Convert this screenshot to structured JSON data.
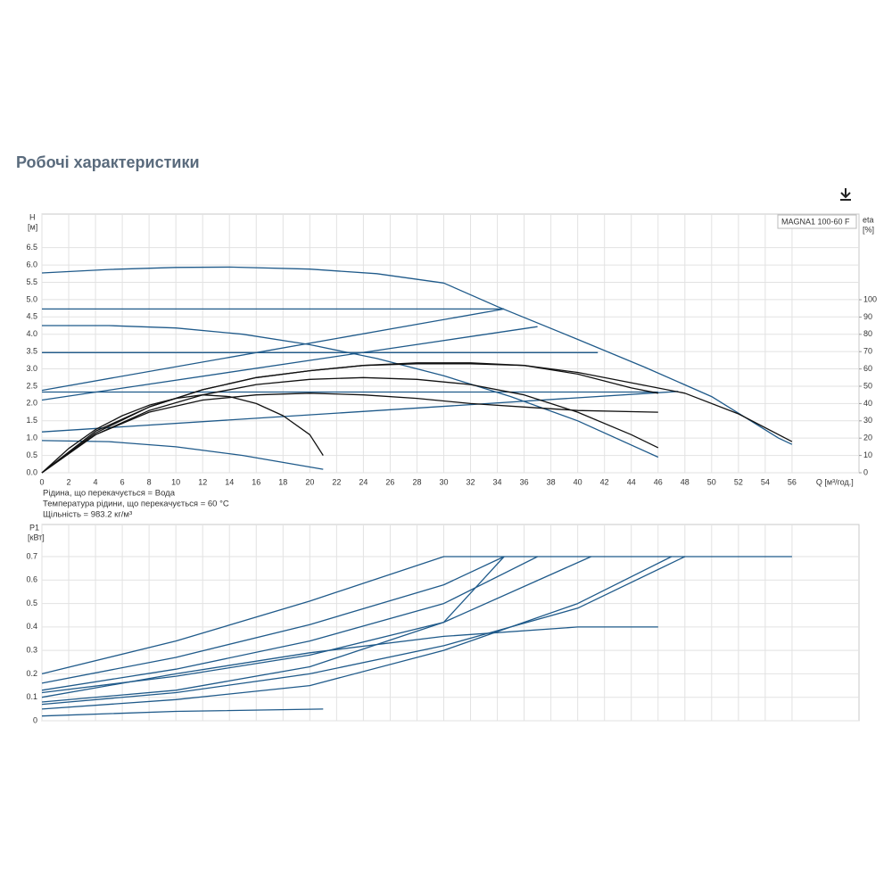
{
  "page_title": "Робочі характеристики",
  "notes": [
    "Рідина, що перекачується = Вода",
    "Температура рідини, що перекачується = 60 °C",
    "Щільність = 983.2 кг/м³"
  ],
  "chart_data": [
    {
      "type": "line",
      "legend_label": "MAGNA1 100-60 F",
      "ylabel": "H",
      "yunit": "[м]",
      "y2label": "eta",
      "y2unit": "[%]",
      "xlabel": "Q [м³/год.]",
      "xlim": [
        0,
        61
      ],
      "xticks": [
        0,
        2,
        4,
        6,
        8,
        10,
        12,
        14,
        16,
        18,
        20,
        22,
        24,
        26,
        28,
        30,
        32,
        34,
        36,
        38,
        40,
        42,
        44,
        46,
        48,
        50,
        52,
        54,
        56
      ],
      "xtick_labels": true,
      "grid": true,
      "ylim": [
        0,
        7.47
      ],
      "yticks": [
        {
          "value": 0,
          "label": "0.0"
        },
        0.5,
        {
          "value": 1,
          "label": "1.0"
        },
        1.5,
        {
          "value": 2,
          "label": "2.0"
        },
        2.5,
        {
          "value": 3,
          "label": "3.0"
        },
        3.5,
        {
          "value": 4,
          "label": "4.0"
        },
        4.5,
        {
          "value": 5,
          "label": "5.0"
        },
        5.5,
        {
          "value": 6,
          "label": "6.0"
        },
        6.5
      ],
      "y2lim": [
        0,
        149.5
      ],
      "y2ticks": [
        0,
        10,
        20,
        30,
        40,
        50,
        60,
        70,
        80,
        90,
        100
      ],
      "series": [
        {
          "color": "#1f5a8a",
          "x": [
            0,
            5,
            10,
            14,
            20,
            25,
            30,
            34,
            40,
            45,
            50,
            55,
            56
          ],
          "values": [
            5.77,
            5.87,
            5.93,
            5.94,
            5.88,
            5.75,
            5.48,
            4.8,
            3.85,
            3.05,
            2.2,
            1.0,
            0.82
          ]
        },
        {
          "color": "#1f5a8a",
          "x": [
            0,
            34.5
          ],
          "values": [
            4.73,
            4.73
          ]
        },
        {
          "color": "#1f5a8a",
          "x": [
            0,
            41.5
          ],
          "values": [
            3.47,
            3.47
          ]
        },
        {
          "color": "#1f5a8a",
          "x": [
            0,
            46
          ],
          "values": [
            2.33,
            2.33
          ]
        },
        {
          "color": "#1f5a8a",
          "x": [
            0,
            34.5
          ],
          "values": [
            2.38,
            4.73
          ]
        },
        {
          "color": "#1f5a8a",
          "x": [
            0,
            37
          ],
          "values": [
            2.1,
            4.22
          ]
        },
        {
          "color": "#1f5a8a",
          "x": [
            0,
            47.5
          ],
          "values": [
            1.18,
            2.35
          ]
        },
        {
          "color": "#1f5a8a",
          "x": [
            0,
            5,
            10,
            15,
            21
          ],
          "values": [
            0.93,
            0.9,
            0.75,
            0.5,
            0.1
          ]
        },
        {
          "color": "#1f5a8a",
          "x": [
            0,
            5,
            10,
            15,
            20,
            25,
            30,
            35,
            40,
            46
          ],
          "values": [
            4.25,
            4.25,
            4.18,
            4.0,
            3.7,
            3.3,
            2.8,
            2.2,
            1.5,
            0.45
          ]
        },
        {
          "color": "#111111",
          "axis": "y2",
          "x": [
            0,
            2,
            4,
            6,
            8,
            10,
            12,
            14,
            16,
            18,
            20,
            21
          ],
          "values": [
            0,
            14,
            25,
            33,
            39,
            43,
            45,
            44,
            40,
            33,
            22,
            10
          ]
        },
        {
          "color": "#111111",
          "axis": "y2",
          "x": [
            0,
            4,
            8,
            12,
            16,
            20,
            24,
            28,
            32,
            36,
            40,
            44,
            46
          ],
          "values": [
            0,
            24,
            38,
            48,
            55,
            59,
            62,
            63,
            63,
            62,
            57,
            49,
            46
          ]
        },
        {
          "color": "#111111",
          "axis": "y2",
          "x": [
            0,
            4,
            8,
            12,
            16,
            20,
            24,
            28,
            32,
            36,
            40,
            44,
            46
          ],
          "values": [
            0,
            22,
            36,
            45,
            51,
            54,
            55,
            54,
            51,
            45,
            35,
            22,
            14.5
          ]
        },
        {
          "color": "#111111",
          "axis": "y2",
          "x": [
            0,
            4,
            8,
            12,
            16,
            20,
            24,
            28,
            32,
            36,
            40,
            44,
            48,
            52,
            56
          ],
          "values": [
            0,
            23,
            38,
            48,
            55,
            59,
            62,
            63.5,
            63.5,
            62,
            58,
            52,
            46,
            34,
            18
          ]
        },
        {
          "color": "#111111",
          "axis": "y2",
          "x": [
            0,
            4,
            8,
            12,
            16,
            20,
            24,
            28,
            32,
            36,
            40,
            46
          ],
          "values": [
            0,
            22,
            35,
            42,
            45,
            46,
            45,
            43,
            40,
            38,
            36,
            35
          ]
        }
      ]
    },
    {
      "type": "line",
      "ylabel": "P1",
      "yunit": "[кВт]",
      "xlim": [
        0,
        61
      ],
      "xticks": [
        0,
        2,
        4,
        6,
        8,
        10,
        12,
        14,
        16,
        18,
        20,
        22,
        24,
        26,
        28,
        30,
        32,
        34,
        36,
        38,
        40,
        42,
        44,
        46,
        48,
        50,
        52,
        54,
        56
      ],
      "xtick_labels": false,
      "grid": true,
      "ylim": [
        0,
        0.837
      ],
      "yticks": [
        0,
        0.1,
        0.2,
        0.3,
        0.4,
        0.5,
        0.6,
        0.7
      ],
      "series": [
        {
          "color": "#1f5a8a",
          "x": [
            0,
            10,
            20,
            30,
            56
          ],
          "values": [
            0.2,
            0.34,
            0.51,
            0.7,
            0.7
          ]
        },
        {
          "color": "#1f5a8a",
          "x": [
            0,
            10,
            20,
            30,
            34.5
          ],
          "values": [
            0.16,
            0.27,
            0.41,
            0.58,
            0.7
          ]
        },
        {
          "color": "#1f5a8a",
          "x": [
            0,
            10,
            20,
            30,
            37
          ],
          "values": [
            0.13,
            0.22,
            0.34,
            0.5,
            0.7
          ]
        },
        {
          "color": "#1f5a8a",
          "x": [
            0,
            10,
            20,
            30,
            41
          ],
          "values": [
            0.12,
            0.19,
            0.28,
            0.42,
            0.7
          ]
        },
        {
          "color": "#1f5a8a",
          "x": [
            0,
            10,
            20,
            30,
            34.5
          ],
          "values": [
            0.08,
            0.13,
            0.23,
            0.42,
            0.7
          ]
        },
        {
          "color": "#1f5a8a",
          "x": [
            0,
            10,
            20,
            30,
            40,
            48
          ],
          "values": [
            0.07,
            0.12,
            0.2,
            0.32,
            0.48,
            0.7
          ]
        },
        {
          "color": "#1f5a8a",
          "x": [
            0,
            10,
            20,
            30,
            40,
            47
          ],
          "values": [
            0.05,
            0.09,
            0.15,
            0.3,
            0.5,
            0.7
          ]
        },
        {
          "color": "#1f5a8a",
          "x": [
            0,
            10,
            20,
            30,
            40,
            46
          ],
          "values": [
            0.1,
            0.2,
            0.29,
            0.36,
            0.4,
            0.4
          ]
        },
        {
          "color": "#1f5a8a",
          "x": [
            0,
            10,
            21
          ],
          "values": [
            0.02,
            0.04,
            0.05
          ]
        }
      ]
    }
  ]
}
